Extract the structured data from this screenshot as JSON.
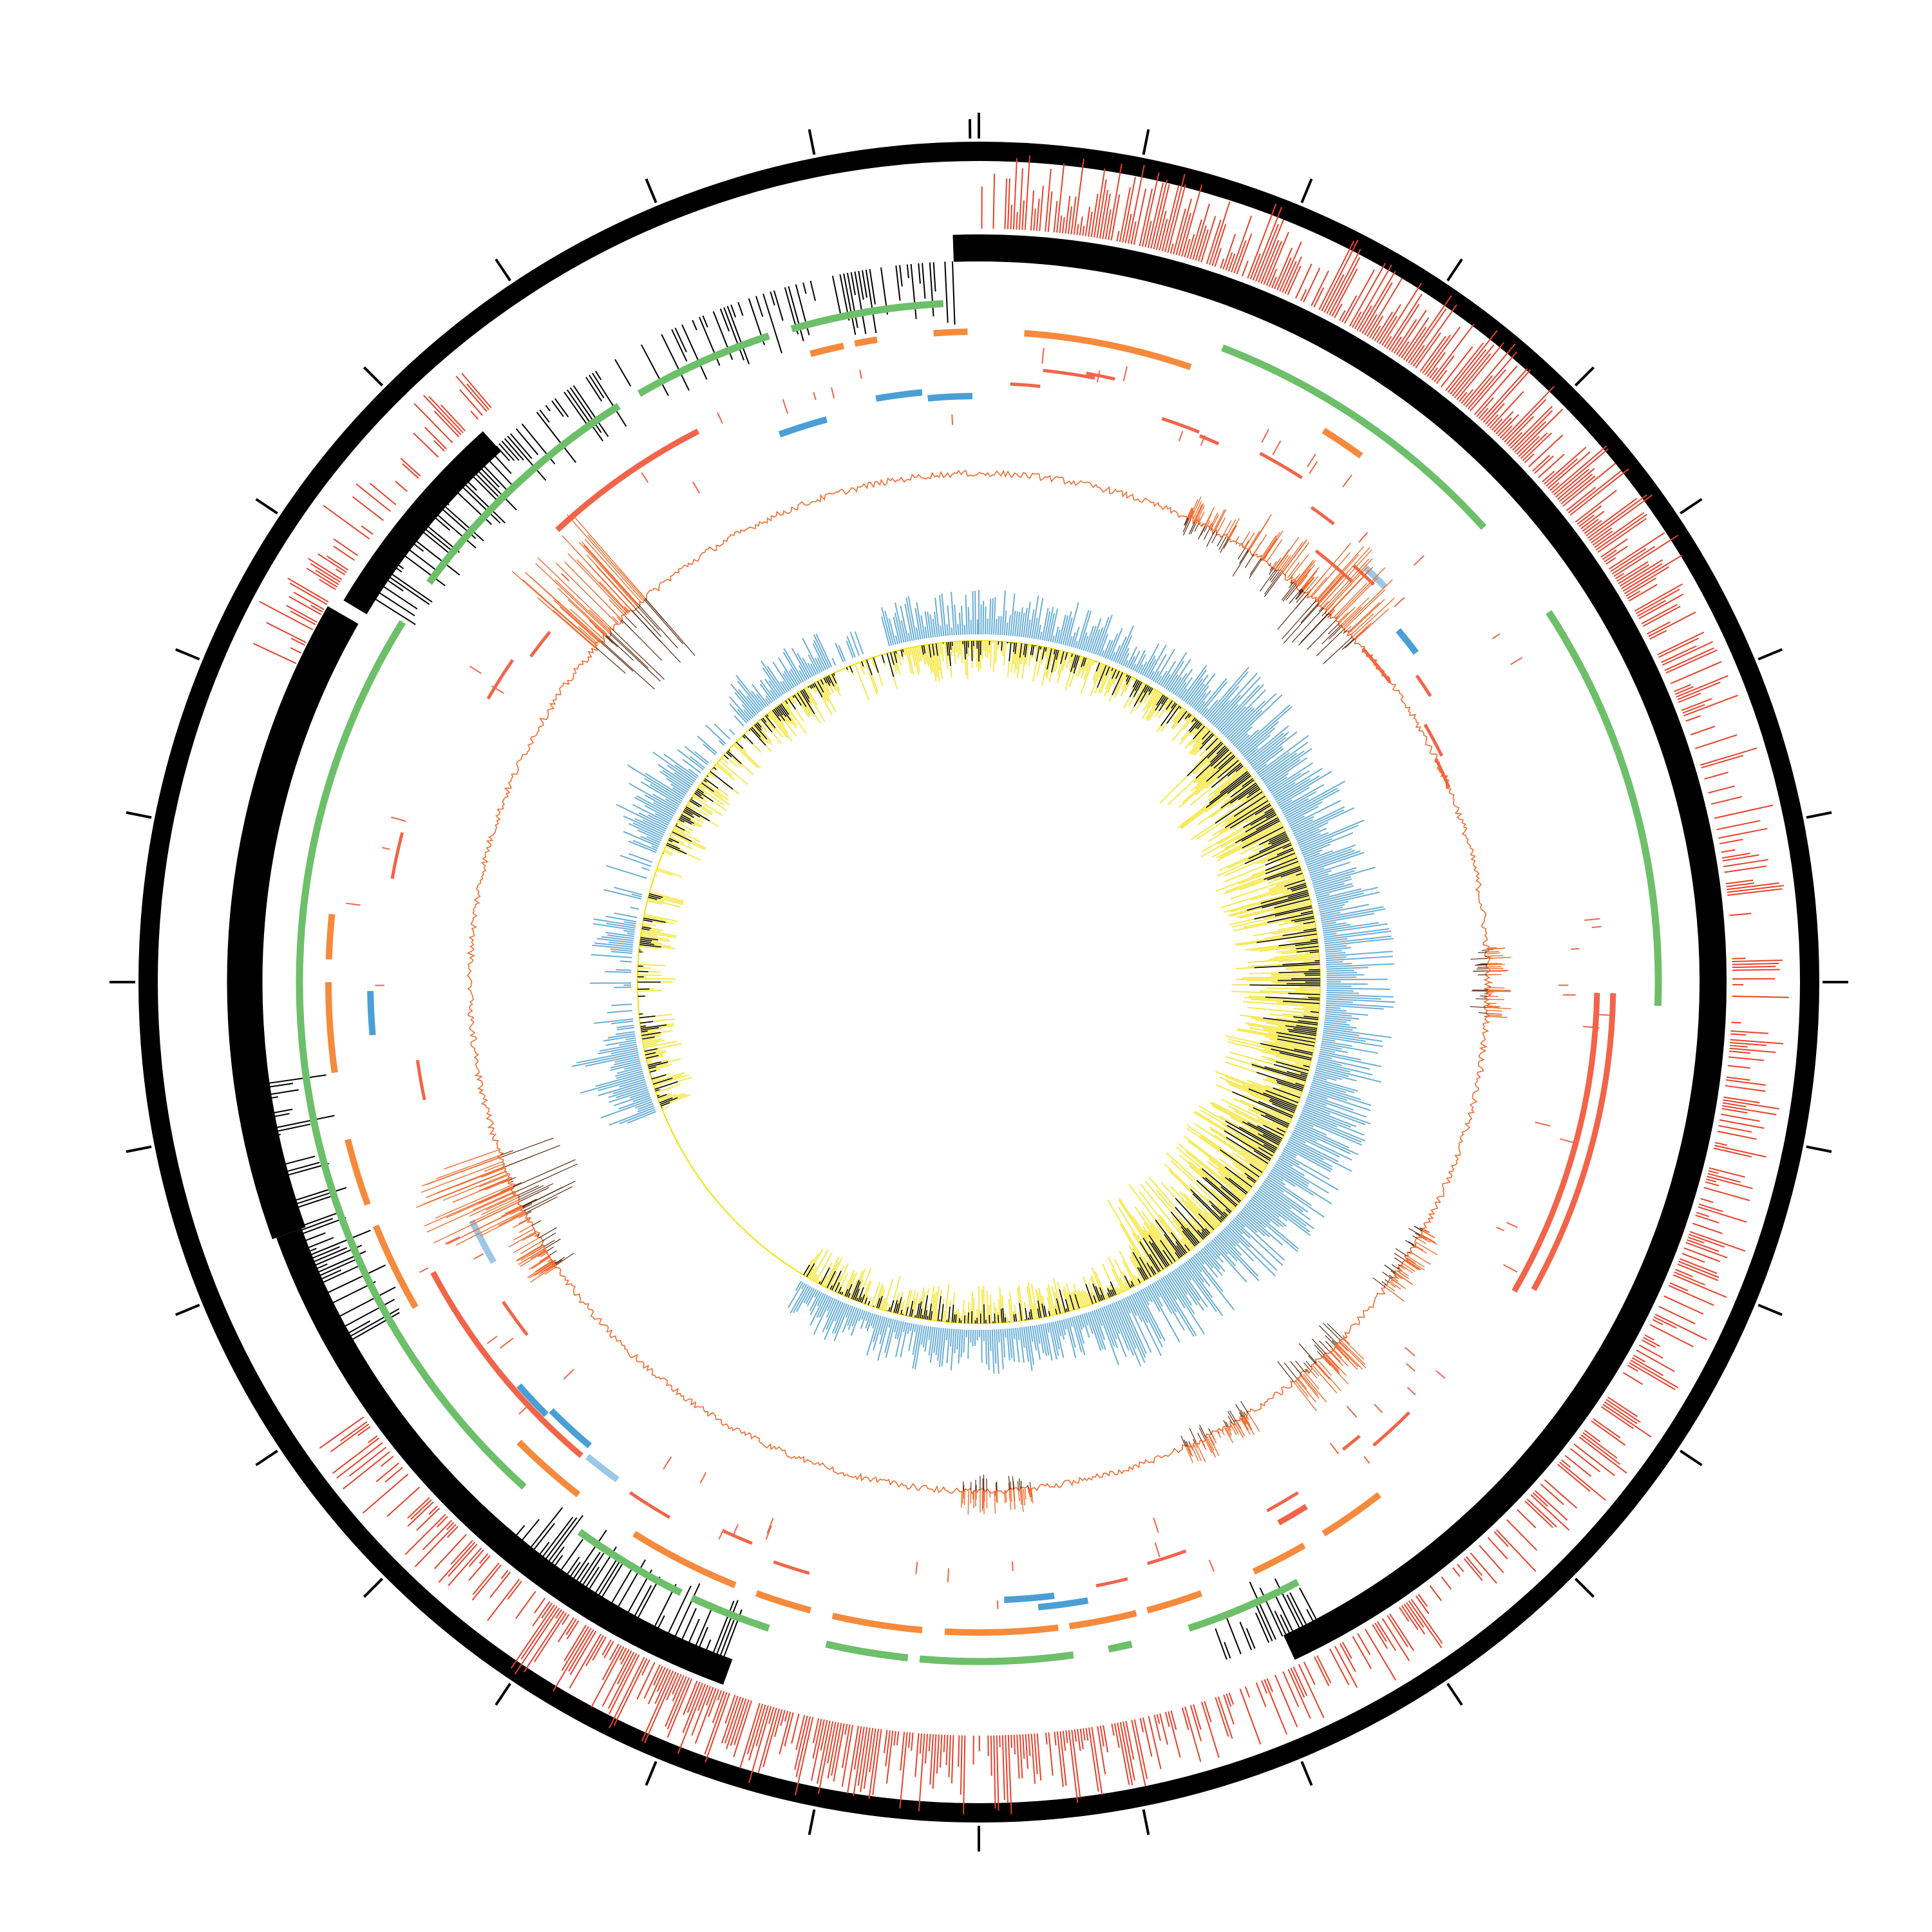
{
  "figure": {
    "kind": "circular genome map",
    "background": "#ffffff",
    "tick_count": 32,
    "tracks": [
      {
        "id": "ideogram",
        "name": "outer-ring",
        "color": "#000000",
        "style": "solid-ring"
      },
      {
        "id": "feature-spikes",
        "name": "red-feature-spikes",
        "color": "#e8402a",
        "style": "histogram-outward"
      },
      {
        "id": "coding-band",
        "name": "black-feature-band",
        "color": "#000000",
        "style": "solid-arc-with-ticks"
      },
      {
        "id": "green-track",
        "name": "green-arcs",
        "color": "#6dbf6a",
        "style": "arc-segments"
      },
      {
        "id": "orange-track",
        "name": "orange-arcs",
        "color": "#f58a3c",
        "style": "arc-segments"
      },
      {
        "id": "red-track",
        "name": "salmon-arcs",
        "color": "#f26449",
        "style": "arc-segments"
      },
      {
        "id": "small-marks",
        "name": "scattered-marks",
        "colors": [
          "#f26449",
          "#4a9fd6",
          "#9dc7e8"
        ],
        "style": "scattered-ticks"
      },
      {
        "id": "line-track",
        "name": "orange-line-plot",
        "color": "#f26a2c",
        "secondary": "#5a2a10",
        "style": "line-with-peaks"
      },
      {
        "id": "blue-hist",
        "name": "blue-histogram",
        "color": "#6aaed6",
        "style": "histogram-outward"
      },
      {
        "id": "yellow-hist",
        "name": "yellow-black-histogram",
        "colors": [
          "#f7e84a",
          "#000000"
        ],
        "baseline": "#f2e200",
        "style": "histogram-inward"
      }
    ]
  }
}
